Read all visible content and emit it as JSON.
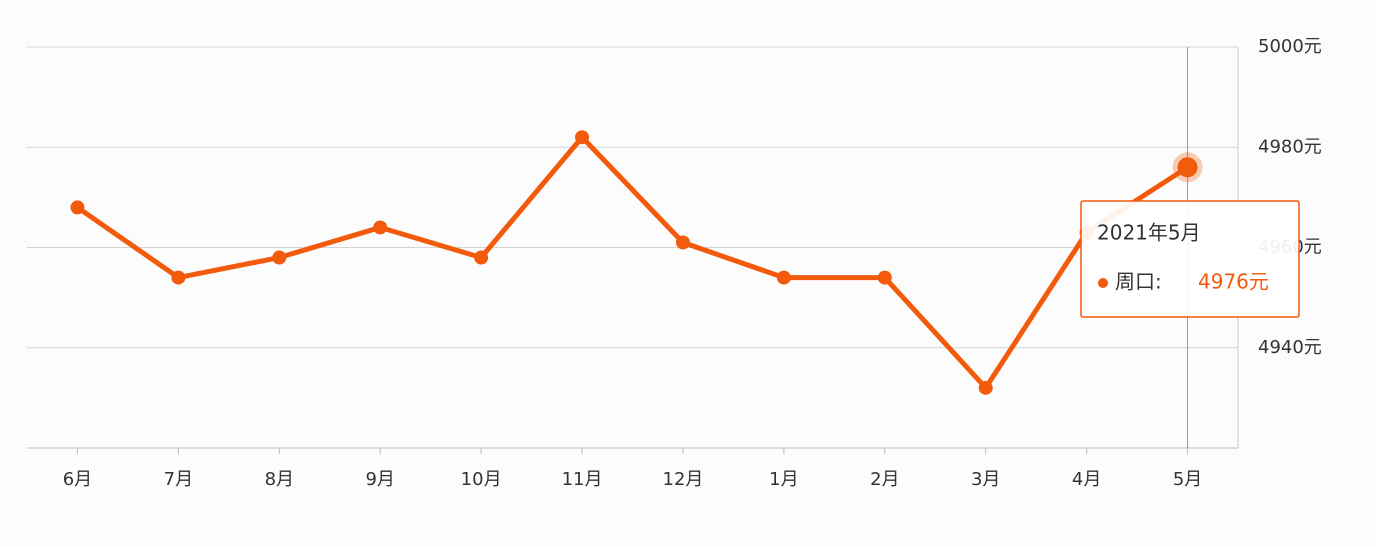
{
  "chart_data": {
    "type": "line",
    "categories": [
      "6月",
      "7月",
      "8月",
      "9月",
      "10月",
      "11月",
      "12月",
      "1月",
      "2月",
      "3月",
      "4月",
      "5月"
    ],
    "values": [
      4968,
      4954,
      4958,
      4964,
      4958,
      4982,
      4961,
      4954,
      4954,
      4932,
      4963,
      4976
    ],
    "value_labels": [
      null,
      null,
      null,
      null,
      null,
      null,
      null,
      null,
      null,
      null,
      null,
      "4976元"
    ],
    "color": "#f25a0c",
    "ylim": [
      4920,
      5000
    ],
    "yticks": [
      {
        "value": 4940,
        "label": "4940元"
      },
      {
        "value": 4960,
        "label": "4960元"
      },
      {
        "value": 4980,
        "label": "4980元"
      },
      {
        "value": 5000,
        "label": "5000元"
      }
    ],
    "grid": true,
    "tooltip_title": "2021年5月",
    "tooltip_label": "周口:"
  }
}
